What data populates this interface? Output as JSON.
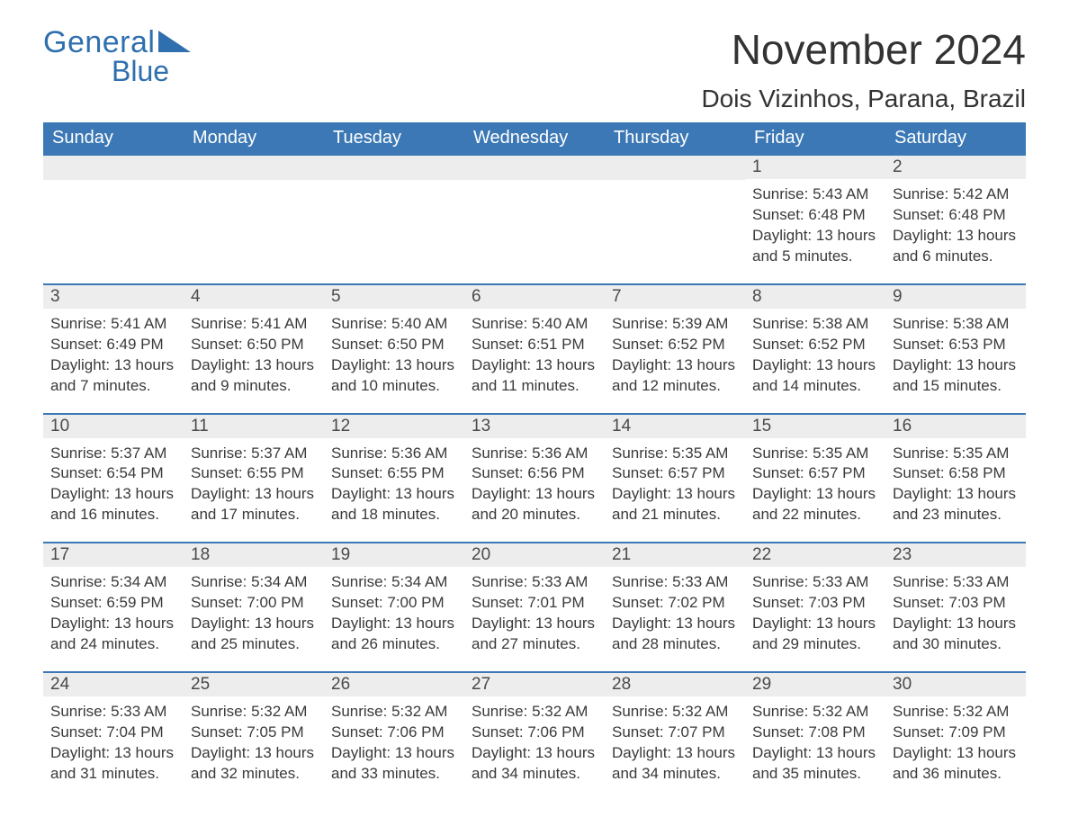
{
  "logo": {
    "word1": "General",
    "word2": "Blue",
    "brand_color": "#2f6fae"
  },
  "title": "November 2024",
  "subtitle": "Dois Vizinhos, Parana, Brazil",
  "colors": {
    "header_bg": "#3b78b5",
    "header_text": "#ffffff",
    "daynum_bg": "#ededed",
    "text": "#3a3a3a",
    "separator": "#3b78b5",
    "page_bg": "#ffffff"
  },
  "fontsizes": {
    "title": 46,
    "subtitle": 28,
    "header": 20,
    "daynum": 19,
    "body": 17
  },
  "day_headers": [
    "Sunday",
    "Monday",
    "Tuesday",
    "Wednesday",
    "Thursday",
    "Friday",
    "Saturday"
  ],
  "weeks": [
    [
      null,
      null,
      null,
      null,
      null,
      {
        "n": "1",
        "sunrise": "5:43 AM",
        "sunset": "6:48 PM",
        "daylight": "13 hours and 5 minutes."
      },
      {
        "n": "2",
        "sunrise": "5:42 AM",
        "sunset": "6:48 PM",
        "daylight": "13 hours and 6 minutes."
      }
    ],
    [
      {
        "n": "3",
        "sunrise": "5:41 AM",
        "sunset": "6:49 PM",
        "daylight": "13 hours and 7 minutes."
      },
      {
        "n": "4",
        "sunrise": "5:41 AM",
        "sunset": "6:50 PM",
        "daylight": "13 hours and 9 minutes."
      },
      {
        "n": "5",
        "sunrise": "5:40 AM",
        "sunset": "6:50 PM",
        "daylight": "13 hours and 10 minutes."
      },
      {
        "n": "6",
        "sunrise": "5:40 AM",
        "sunset": "6:51 PM",
        "daylight": "13 hours and 11 minutes."
      },
      {
        "n": "7",
        "sunrise": "5:39 AM",
        "sunset": "6:52 PM",
        "daylight": "13 hours and 12 minutes."
      },
      {
        "n": "8",
        "sunrise": "5:38 AM",
        "sunset": "6:52 PM",
        "daylight": "13 hours and 14 minutes."
      },
      {
        "n": "9",
        "sunrise": "5:38 AM",
        "sunset": "6:53 PM",
        "daylight": "13 hours and 15 minutes."
      }
    ],
    [
      {
        "n": "10",
        "sunrise": "5:37 AM",
        "sunset": "6:54 PM",
        "daylight": "13 hours and 16 minutes."
      },
      {
        "n": "11",
        "sunrise": "5:37 AM",
        "sunset": "6:55 PM",
        "daylight": "13 hours and 17 minutes."
      },
      {
        "n": "12",
        "sunrise": "5:36 AM",
        "sunset": "6:55 PM",
        "daylight": "13 hours and 18 minutes."
      },
      {
        "n": "13",
        "sunrise": "5:36 AM",
        "sunset": "6:56 PM",
        "daylight": "13 hours and 20 minutes."
      },
      {
        "n": "14",
        "sunrise": "5:35 AM",
        "sunset": "6:57 PM",
        "daylight": "13 hours and 21 minutes."
      },
      {
        "n": "15",
        "sunrise": "5:35 AM",
        "sunset": "6:57 PM",
        "daylight": "13 hours and 22 minutes."
      },
      {
        "n": "16",
        "sunrise": "5:35 AM",
        "sunset": "6:58 PM",
        "daylight": "13 hours and 23 minutes."
      }
    ],
    [
      {
        "n": "17",
        "sunrise": "5:34 AM",
        "sunset": "6:59 PM",
        "daylight": "13 hours and 24 minutes."
      },
      {
        "n": "18",
        "sunrise": "5:34 AM",
        "sunset": "7:00 PM",
        "daylight": "13 hours and 25 minutes."
      },
      {
        "n": "19",
        "sunrise": "5:34 AM",
        "sunset": "7:00 PM",
        "daylight": "13 hours and 26 minutes."
      },
      {
        "n": "20",
        "sunrise": "5:33 AM",
        "sunset": "7:01 PM",
        "daylight": "13 hours and 27 minutes."
      },
      {
        "n": "21",
        "sunrise": "5:33 AM",
        "sunset": "7:02 PM",
        "daylight": "13 hours and 28 minutes."
      },
      {
        "n": "22",
        "sunrise": "5:33 AM",
        "sunset": "7:03 PM",
        "daylight": "13 hours and 29 minutes."
      },
      {
        "n": "23",
        "sunrise": "5:33 AM",
        "sunset": "7:03 PM",
        "daylight": "13 hours and 30 minutes."
      }
    ],
    [
      {
        "n": "24",
        "sunrise": "5:33 AM",
        "sunset": "7:04 PM",
        "daylight": "13 hours and 31 minutes."
      },
      {
        "n": "25",
        "sunrise": "5:32 AM",
        "sunset": "7:05 PM",
        "daylight": "13 hours and 32 minutes."
      },
      {
        "n": "26",
        "sunrise": "5:32 AM",
        "sunset": "7:06 PM",
        "daylight": "13 hours and 33 minutes."
      },
      {
        "n": "27",
        "sunrise": "5:32 AM",
        "sunset": "7:06 PM",
        "daylight": "13 hours and 34 minutes."
      },
      {
        "n": "28",
        "sunrise": "5:32 AM",
        "sunset": "7:07 PM",
        "daylight": "13 hours and 34 minutes."
      },
      {
        "n": "29",
        "sunrise": "5:32 AM",
        "sunset": "7:08 PM",
        "daylight": "13 hours and 35 minutes."
      },
      {
        "n": "30",
        "sunrise": "5:32 AM",
        "sunset": "7:09 PM",
        "daylight": "13 hours and 36 minutes."
      }
    ]
  ],
  "labels": {
    "sunrise": "Sunrise:",
    "sunset": "Sunset:",
    "daylight": "Daylight:"
  }
}
